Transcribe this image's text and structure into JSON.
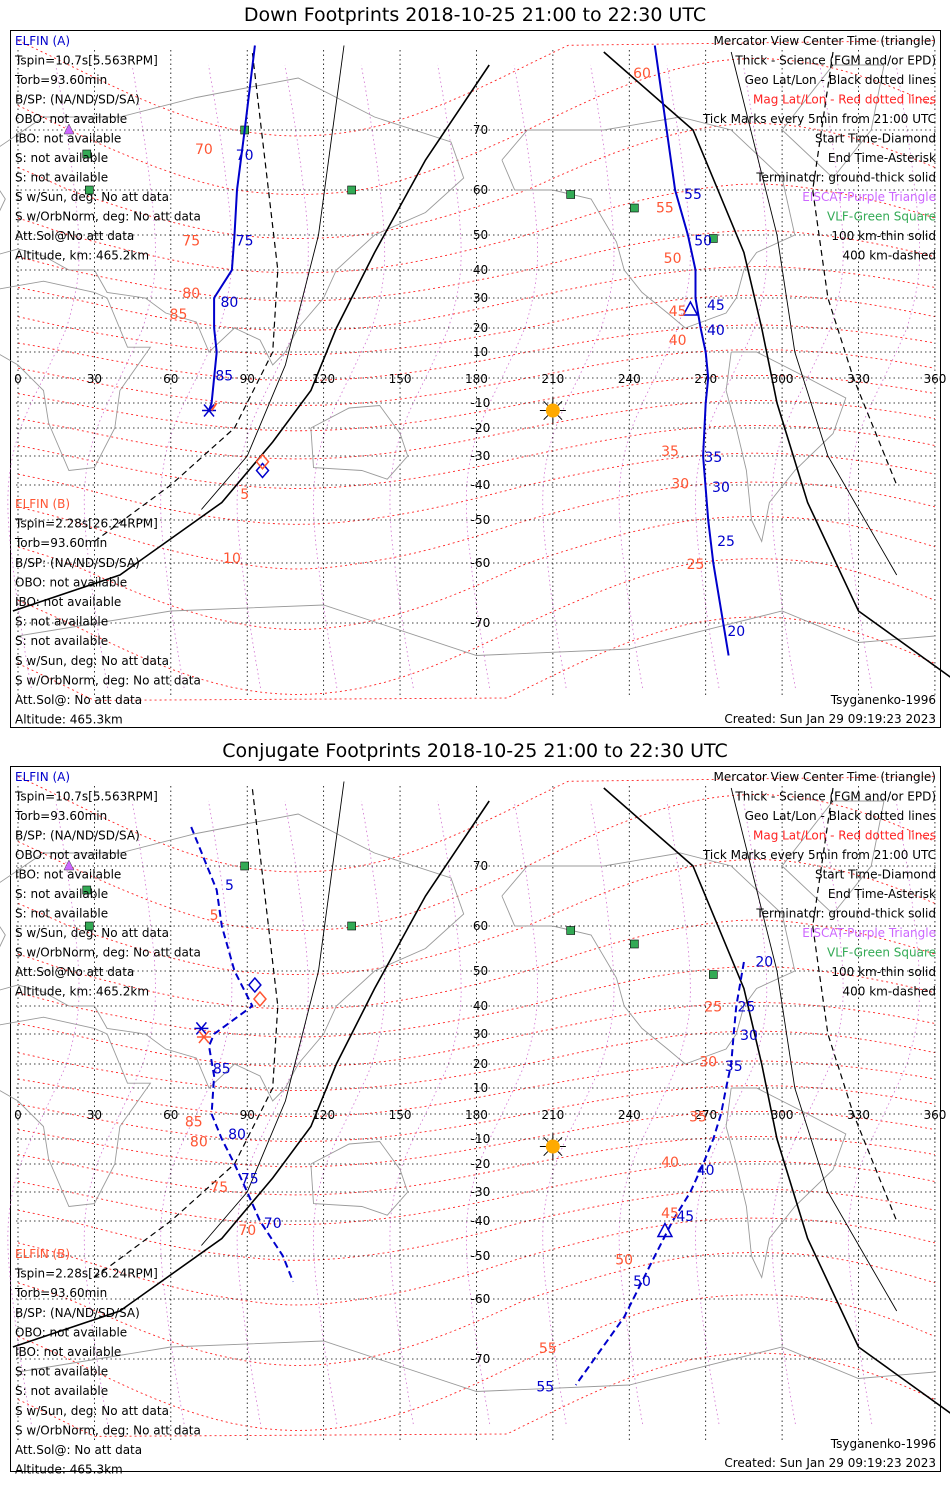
{
  "panels": [
    {
      "title": "Down Footprints 2018-10-25 21:00 to 22:30 UTC",
      "kind": "down",
      "elfin_a": [
        "ELFIN (A)",
        "Tspin=10.7s[5.563RPM]",
        "Torb=93.60min",
        "B/SP: (NA/ND/SD/SA)",
        "OBO: not available",
        "IBO: not available",
        "S: not available",
        "S: not available",
        "S w/Sun, deg: No att data",
        "S w/OrbNorm, deg: No att data",
        "Att.Sol@No att data",
        "Altitude, km: 465.2km"
      ],
      "elfin_b": [
        "ELFIN (B)",
        "Tspin=2.28s[26.24RPM]",
        "Torb=93.60min",
        "B/SP: (NA/ND/SD/SA)",
        "OBO: not available",
        "IBO: not available",
        "S: not available",
        "S: not available",
        "S w/Sun, deg: No att data",
        "S w/OrbNorm, deg: No att data",
        "Att.Sol@: No att data",
        "Altitude: 465.3km"
      ],
      "legend": [
        "Mercator View Center Time (triangle)",
        "Thick - Science (FGM and/or EPD)",
        "Geo Lat/Lon - Black dotted lines",
        "Mag Lat/Lon - Red dotted lines",
        "Tick Marks every 5min from 21:00 UTC",
        "Start Time-Diamond",
        "End Time-Asterisk",
        "Terminator: ground-thick solid",
        "EISCAT-Purple Triangle",
        "VLF-Green Square",
        "100 km-thin solid",
        "400 km-dashed"
      ],
      "model": "Tsyganenko-1996",
      "created": "Created: Sun Jan 29 09:19:23 2023"
    },
    {
      "title": "Conjugate Footprints 2018-10-25 21:00 to 22:30 UTC",
      "kind": "conj",
      "elfin_a": [
        "ELFIN (A)",
        "Tspin=10.7s[5.563RPM]",
        "Torb=93.60min",
        "B/SP: (NA/ND/SD/SA)",
        "OBO: not available",
        "IBO: not available",
        "S: not available",
        "S: not available",
        "S w/Sun, deg: No att data",
        "S w/OrbNorm, deg: No att data",
        "Att.Sol@No att data",
        "Altitude, km: 465.2km"
      ],
      "elfin_b": [
        "ELFIN (B)",
        "Tspin=2.28s[26.24RPM]",
        "Torb=93.60min",
        "B/SP: (NA/ND/SD/SA)",
        "OBO: not available",
        "IBO: not available",
        "S: not available",
        "S: not available",
        "S w/Sun, deg: No att data",
        "S w/OrbNorm, deg: No att data",
        "Att.Sol@: No att data",
        "Altitude: 465.3km"
      ],
      "legend": [
        "Mercator View Center Time (triangle)",
        "Thick - Science (FGM and/or EPD)",
        "Geo Lat/Lon - Black dotted lines",
        "Mag Lat/Lon - Red dotted lines",
        "Tick Marks every 5min from 21:00 UTC",
        "Start Time-Diamond",
        "End Time-Asterisk",
        "Terminator: ground-thick solid",
        "EISCAT-Purple Triangle",
        "VLF-Green Square",
        "100 km-thin solid",
        "400 km-dashed"
      ],
      "model": "Tsyganenko-1996",
      "created": "Created: Sun Jan 29 09:19:23 2023"
    }
  ],
  "colors": {
    "elfin_a": "#0000cc",
    "elfin_b": "#ff5533",
    "mag_grid": "#ff2222",
    "geo_grid": "#000000",
    "eiscat": "#cc66ff",
    "vlf": "#33aa55",
    "sun": "#ffaa00",
    "coast": "#9a9a9a",
    "mag_meridian": "#d070d0"
  },
  "chart_data": [
    {
      "type": "line",
      "title": "Down Footprints 2018-10-25 21:00 to 22:30 UTC",
      "xlabel": "",
      "ylabel": "",
      "x_ticks": [
        0,
        30,
        60,
        90,
        120,
        150,
        180,
        210,
        240,
        270,
        300,
        330,
        360
      ],
      "y_ticks": [
        70,
        60,
        50,
        40,
        30,
        20,
        10,
        -10,
        -20,
        -30,
        -40,
        -50,
        -60,
        -70
      ],
      "xlim": [
        0,
        360
      ],
      "grid": true,
      "sun": {
        "lon": 210,
        "lat": -13
      },
      "vlf_stations": [
        {
          "lon": 27,
          "lat": 66
        },
        {
          "lon": 28,
          "lat": 60
        },
        {
          "lon": 89,
          "lat": 70
        },
        {
          "lon": 131,
          "lat": 60
        },
        {
          "lon": 217,
          "lat": 59
        },
        {
          "lon": 242,
          "lat": 56
        },
        {
          "lon": 273,
          "lat": 49
        }
      ],
      "eiscat": [
        {
          "lon": 20,
          "lat": 70
        }
      ],
      "series": [
        {
          "name": "ELFIN (A)",
          "points": [
            [
              93,
              83
            ],
            [
              89,
              70
            ],
            [
              86,
              60
            ],
            [
              85,
              50
            ],
            [
              84,
              40
            ],
            [
              77,
              30
            ],
            [
              77,
              20
            ],
            [
              78,
              10
            ],
            [
              76,
              -10
            ],
            [
              75,
              -13
            ]
          ],
          "labels": [
            [
              "70",
              89,
              65
            ],
            [
              "75",
              89,
              47
            ],
            [
              "80",
              83,
              27
            ],
            [
              "85",
              81,
              -1
            ]
          ],
          "start": [
            96,
            -35
          ],
          "end": [
            75,
            -13
          ]
        },
        {
          "name": "ELFIN (A)",
          "points": [
            [
              250,
              83
            ],
            [
              258,
              60
            ],
            [
              263,
              50
            ],
            [
              266,
              40
            ],
            [
              266,
              30
            ],
            [
              268,
              20
            ],
            [
              270,
              10
            ],
            [
              271,
              0
            ],
            [
              270,
              -10
            ],
            [
              269,
              -30
            ],
            [
              271,
              -50
            ],
            [
              273,
              -60
            ],
            [
              279,
              -75
            ]
          ],
          "labels": [
            [
              "55",
              265,
              58
            ],
            [
              "50",
              269,
              47
            ],
            [
              "45",
              274,
              26
            ],
            [
              "40",
              274,
              17
            ],
            [
              "35",
              273,
              -32
            ],
            [
              "30",
              276,
              -42
            ],
            [
              "25",
              278,
              -56
            ],
            [
              "20",
              282,
              -72
            ]
          ],
          "center": [
            264,
            26
          ]
        },
        {
          "name": "ELFIN (B)",
          "points": [
            [
              76,
              -13
            ],
            [
              78,
              -10
            ]
          ],
          "labels": [
            [
              "70",
              73,
              66
            ],
            [
              "75",
              68,
              47
            ],
            [
              "80",
              68,
              30
            ],
            [
              "85",
              63,
              23
            ],
            [
              "5",
              89,
              -44
            ],
            [
              "10",
              84,
              -60
            ]
          ],
          "start": [
            96,
            -32
          ]
        },
        {
          "name": "ELFIN (B)",
          "points": [
            [
              264,
              30
            ]
          ],
          "labels": [
            [
              "60",
              245,
              78
            ],
            [
              "55",
              254,
              55
            ],
            [
              "50",
              257,
              42
            ],
            [
              "45",
              259,
              24
            ],
            [
              "40",
              259,
              13
            ],
            [
              "35",
              256,
              -30
            ],
            [
              "30",
              260,
              -41
            ],
            [
              "25",
              266,
              -61
            ]
          ]
        }
      ]
    },
    {
      "type": "line",
      "title": "Conjugate Footprints 2018-10-25 21:00 to 22:30 UTC",
      "xlabel": "",
      "ylabel": "",
      "x_ticks": [
        0,
        30,
        60,
        90,
        120,
        150,
        180,
        210,
        240,
        270,
        300,
        330,
        360
      ],
      "y_ticks": [
        70,
        60,
        50,
        40,
        30,
        20,
        10,
        -10,
        -20,
        -30,
        -40,
        -50,
        -60,
        -70
      ],
      "xlim": [
        0,
        360
      ],
      "grid": true,
      "sun": {
        "lon": 210,
        "lat": -13
      },
      "vlf_stations": [
        {
          "lon": 27,
          "lat": 66
        },
        {
          "lon": 28,
          "lat": 60
        },
        {
          "lon": 89,
          "lat": 70
        },
        {
          "lon": 131,
          "lat": 60
        },
        {
          "lon": 217,
          "lat": 59
        },
        {
          "lon": 242,
          "lat": 56
        },
        {
          "lon": 273,
          "lat": 49
        }
      ],
      "eiscat": [
        {
          "lon": 20,
          "lat": 70
        }
      ],
      "series": [
        {
          "name": "ELFIN (A)",
          "points": [
            [
              68,
              76
            ],
            [
              78,
              66
            ],
            [
              80,
              60
            ],
            [
              85,
              50
            ],
            [
              92,
              40
            ],
            [
              77,
              30
            ],
            [
              75,
              26
            ],
            [
              77,
              15
            ],
            [
              76,
              0
            ],
            [
              80,
              -10
            ],
            [
              85,
              -20
            ],
            [
              90,
              -30
            ],
            [
              95,
              -40
            ],
            [
              104,
              -50
            ],
            [
              108,
              -56
            ]
          ],
          "labels": [
            [
              "5",
              83,
              66
            ],
            [
              "85",
              80,
              16
            ],
            [
              "80",
              86,
              -10
            ],
            [
              "75",
              91,
              -27
            ],
            [
              "70",
              100,
              -42
            ]
          ],
          "start": [
            93,
            46
          ],
          "end": [
            72,
            32
          ]
        },
        {
          "name": "ELFIN (A)",
          "points": [
            [
              285,
              52
            ],
            [
              282,
              40
            ],
            [
              281,
              30
            ],
            [
              280,
              20
            ],
            [
              278,
              10
            ],
            [
              276,
              0
            ],
            [
              273,
              -10
            ],
            [
              269,
              -20
            ],
            [
              264,
              -30
            ],
            [
              257,
              -40
            ],
            [
              250,
              -50
            ],
            [
              238,
              -63
            ],
            [
              219,
              -74
            ]
          ],
          "labels": [
            [
              "20",
              293,
              51
            ],
            [
              "25",
              286,
              38
            ],
            [
              "30",
              287,
              28
            ],
            [
              "35",
              281,
              17
            ],
            [
              "40",
              270,
              -24
            ],
            [
              "45",
              262,
              -40
            ],
            [
              "50",
              245,
              -57
            ],
            [
              "55",
              207,
              -75
            ]
          ],
          "center": [
            254,
            -43
          ]
        },
        {
          "name": "ELFIN (B)",
          "points": [
            [],
            []
          ],
          "labels": [
            [
              "5",
              77,
              61
            ],
            [
              "85",
              69,
              -5
            ],
            [
              "80",
              71,
              -13
            ],
            [
              "75",
              79,
              -30
            ],
            [
              "70",
              90,
              -44
            ]
          ],
          "start": [
            95,
            42
          ],
          "end": [
            73,
            29
          ]
        },
        {
          "name": "ELFIN (B)",
          "points": [
            []
          ],
          "labels": [
            [
              "25",
              273,
              38
            ],
            [
              "30",
              271,
              19
            ],
            [
              "35",
              267,
              -3
            ],
            [
              "40",
              256,
              -21
            ],
            [
              "45",
              256,
              -39
            ],
            [
              "50",
              238,
              -52
            ],
            [
              "55",
              208,
              -69
            ]
          ]
        }
      ]
    }
  ]
}
